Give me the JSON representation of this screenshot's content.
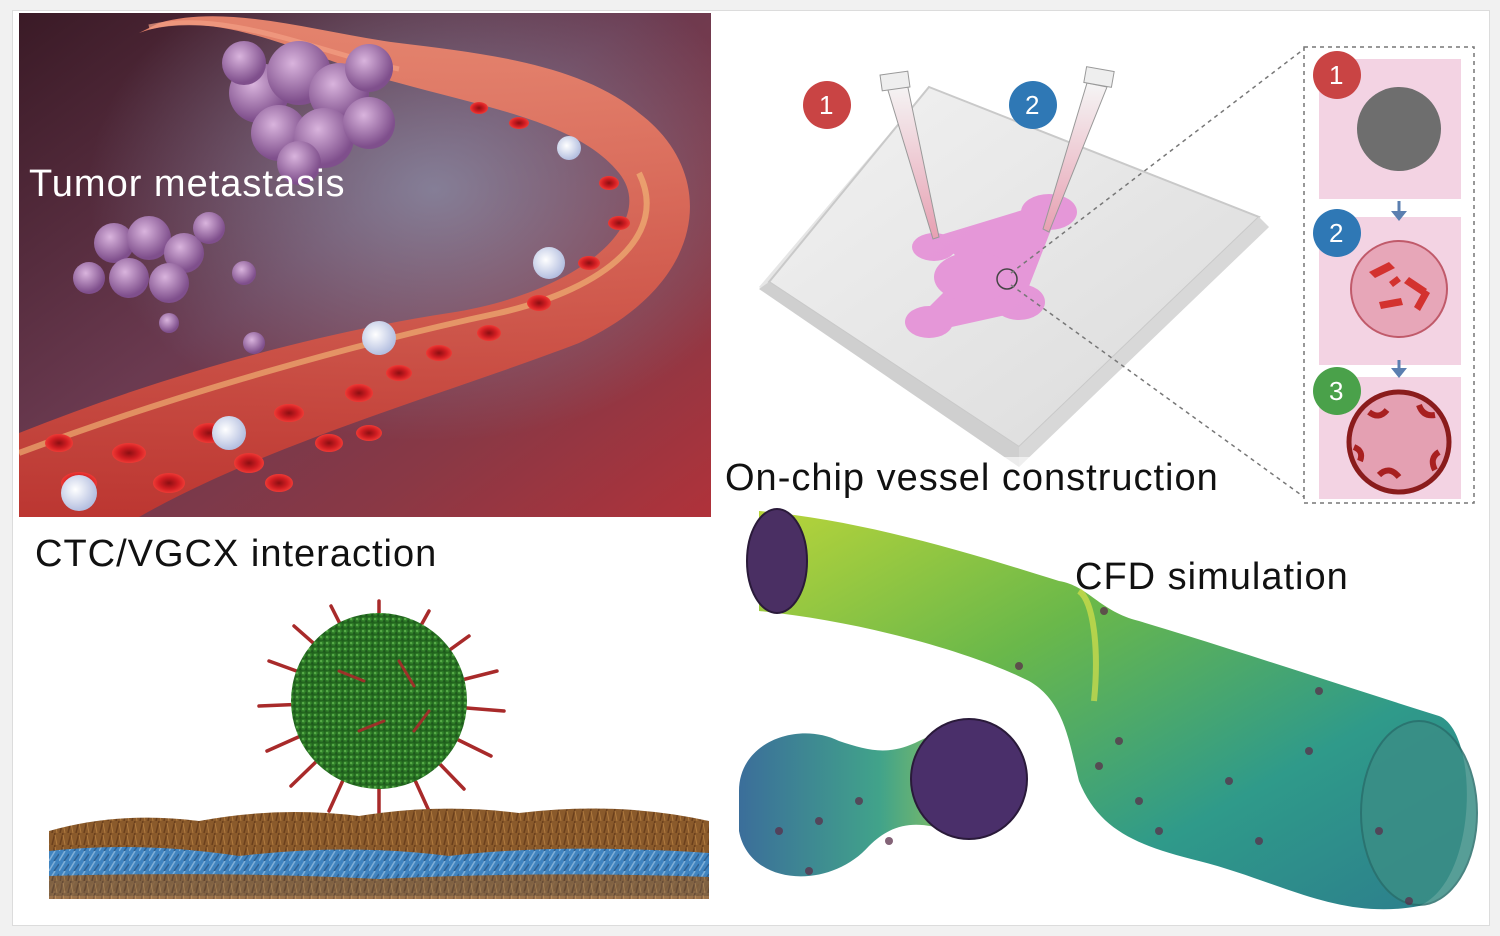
{
  "panels": {
    "metastasis": {
      "label": "Tumor metastasis"
    },
    "vessel_construction": {
      "label": "On-chip vessel construction",
      "steps": [
        "1",
        "2",
        "3"
      ],
      "pipettes": [
        "1",
        "2"
      ]
    },
    "interaction": {
      "label": "CTC/VGCX interaction"
    },
    "cfd": {
      "label": "CFD simulation"
    }
  },
  "colors": {
    "step1": "#c94444",
    "step2": "#2f78b5",
    "step3": "#4aa14a",
    "blood_vessel": "#d8483f",
    "tumor": "#9a6aa5",
    "chip_fluid": "#e58ad6",
    "cell_green": "#2f7d2a",
    "spikes": "#a82a2a",
    "glycocalyx_brown": "#8a5a2b",
    "glycocalyx_blue": "#3c86c8"
  }
}
